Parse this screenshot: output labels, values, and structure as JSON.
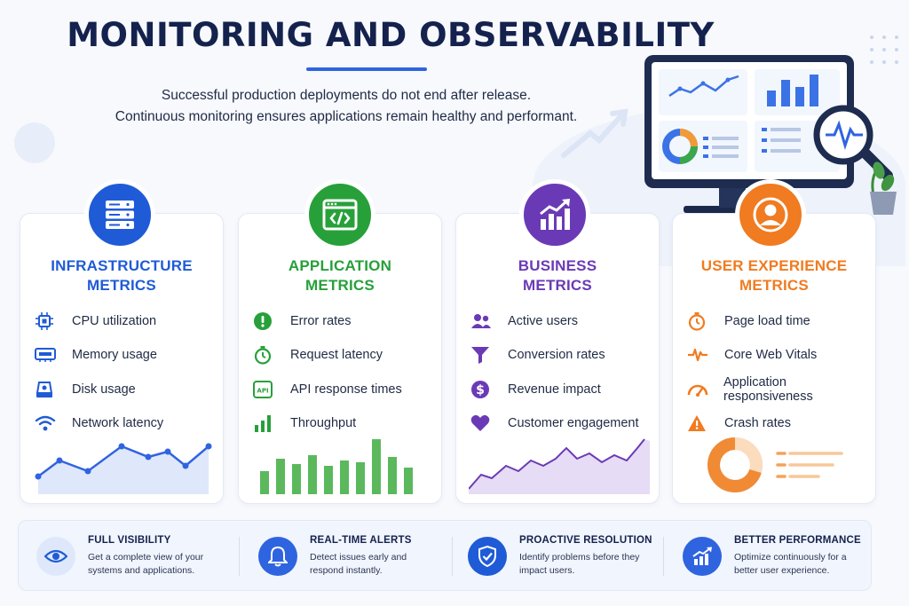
{
  "header": {
    "title": "MONITORING AND OBSERVABILITY",
    "subtitle_line1": "Successful production deployments do not end after release.",
    "subtitle_line2": "Continuous monitoring ensures applications remain healthy and performant."
  },
  "colors": {
    "infrastructure": "#1f5bd6",
    "application": "#27a03a",
    "business": "#6a3ab6",
    "user_experience": "#f07b20",
    "navy": "#14224d"
  },
  "cards": [
    {
      "title_line1": "INFRASTRUCTURE",
      "title_line2": "METRICS",
      "icon": "server-icon",
      "metrics": [
        {
          "label": "CPU utilization",
          "icon": "cpu-icon"
        },
        {
          "label": "Memory usage",
          "icon": "memory-icon"
        },
        {
          "label": "Disk usage",
          "icon": "disk-icon"
        },
        {
          "label": "Network latency",
          "icon": "wifi-icon"
        }
      ]
    },
    {
      "title_line1": "APPLICATION",
      "title_line2": "METRICS",
      "icon": "code-window-icon",
      "metrics": [
        {
          "label": "Error rates",
          "icon": "alert-circle-icon"
        },
        {
          "label": "Request latency",
          "icon": "stopwatch-icon"
        },
        {
          "label": "API response times",
          "icon": "api-icon"
        },
        {
          "label": "Throughput",
          "icon": "bar-chart-icon"
        }
      ]
    },
    {
      "title_line1": "BUSINESS",
      "title_line2": "METRICS",
      "icon": "growth-chart-icon",
      "metrics": [
        {
          "label": "Active users",
          "icon": "users-icon"
        },
        {
          "label": "Conversion rates",
          "icon": "funnel-icon"
        },
        {
          "label": "Revenue impact",
          "icon": "dollar-icon"
        },
        {
          "label": "Customer engagement",
          "icon": "heart-icon"
        }
      ]
    },
    {
      "title_line1": "USER EXPERIENCE",
      "title_line2": "METRICS",
      "icon": "user-icon",
      "metrics": [
        {
          "label": "Page load time",
          "icon": "timer-icon"
        },
        {
          "label": "Core Web Vitals",
          "icon": "pulse-icon"
        },
        {
          "label": "Application responsiveness",
          "icon": "gauge-icon"
        },
        {
          "label": "Crash rates",
          "icon": "warning-icon"
        }
      ]
    }
  ],
  "features": [
    {
      "title": "FULL VISIBILITY",
      "desc1": "Get a complete view of your",
      "desc2": "systems and applications.",
      "icon": "eye-icon"
    },
    {
      "title": "REAL-TIME ALERTS",
      "desc1": "Detect issues early and",
      "desc2": "respond instantly.",
      "icon": "bell-icon"
    },
    {
      "title": "PROACTIVE RESOLUTION",
      "desc1": "Identify problems before they",
      "desc2": "impact users.",
      "icon": "shield-check-icon"
    },
    {
      "title": "BETTER PERFORMANCE",
      "desc1": "Optimize continuously for a",
      "desc2": "better user experience.",
      "icon": "trend-up-icon"
    }
  ]
}
